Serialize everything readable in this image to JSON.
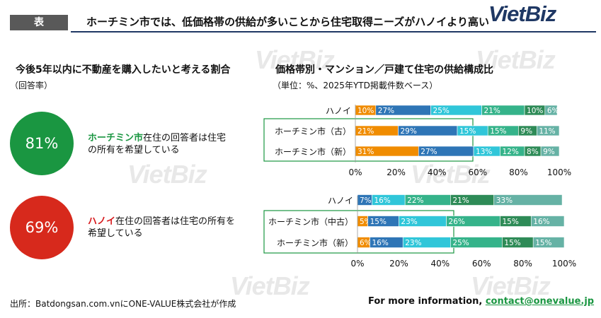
{
  "header": {
    "badge": "表",
    "title": "ホーチミン市では、低価格帯の供給が多いことから住宅取得ニーズがハノイより高い",
    "logo": "VietBiz"
  },
  "watermark": "VietBiz",
  "left": {
    "title": "今後5年以内に不動産を購入したいと考える割合",
    "unit": "（回答率）",
    "items": [
      {
        "value": "81%",
        "color": "#1a9641",
        "highlight": "ホーチミン市",
        "text": "在住の回答者は住宅の所有を希望している"
      },
      {
        "value": "69%",
        "color": "#d7291c",
        "highlight": "ハノイ",
        "text": "在住の回答者は住宅の所有を希望している"
      }
    ]
  },
  "right": {
    "title": "価格帯別・マンション／戸建て住宅の供給構成比",
    "unit": "（単位：%、2025年YTD掲載件数ベース）"
  },
  "chart_data": [
    {
      "type": "bar",
      "orientation": "horizontal-stacked",
      "categories": [
        "ハノイ",
        "ホーチミン市（古）",
        "ホーチミン市（新）"
      ],
      "colors": [
        "#f08c00",
        "#2e75b6",
        "#30c6d9",
        "#35b38a",
        "#2e8b57",
        "#66b2a5"
      ],
      "series": [
        {
          "name": "price-band-1",
          "values": [
            10,
            21,
            31
          ]
        },
        {
          "name": "price-band-2",
          "values": [
            27,
            29,
            27
          ]
        },
        {
          "name": "price-band-3",
          "values": [
            25,
            15,
            13
          ]
        },
        {
          "name": "price-band-4",
          "values": [
            21,
            15,
            12
          ]
        },
        {
          "name": "price-band-5",
          "values": [
            10,
            9,
            8
          ]
        },
        {
          "name": "price-band-6",
          "values": [
            6,
            11,
            9
          ]
        }
      ],
      "xlim": [
        0,
        100
      ],
      "xticks": [
        "0%",
        "20%",
        "40%",
        "60%",
        "80%",
        "100%"
      ]
    },
    {
      "type": "bar",
      "orientation": "horizontal-stacked",
      "categories": [
        "ハノイ",
        "ホーチミン市（中古）",
        "ホーチミン市（新）"
      ],
      "colors": [
        "#f08c00",
        "#2e75b6",
        "#30c6d9",
        "#35b38a",
        "#2e8b57",
        "#66b2a5"
      ],
      "series": [
        {
          "name": "price-band-1",
          "values": [
            0,
            5,
            6
          ]
        },
        {
          "name": "price-band-2",
          "values": [
            7,
            15,
            16
          ]
        },
        {
          "name": "price-band-3",
          "values": [
            16,
            23,
            23
          ]
        },
        {
          "name": "price-band-4",
          "values": [
            22,
            26,
            25
          ]
        },
        {
          "name": "price-band-5",
          "values": [
            21,
            15,
            15
          ]
        },
        {
          "name": "price-band-6",
          "values": [
            33,
            16,
            15
          ]
        }
      ],
      "xlim": [
        0,
        100
      ],
      "xticks": [
        "0%",
        "20%",
        "40%",
        "60%",
        "80%",
        "100%"
      ]
    }
  ],
  "footer": {
    "source": "出所：Batdongsan.com.vnにONE-VALUE株式会社が作成",
    "more_label": "For more information, ",
    "email": "contact@onevalue.jp"
  }
}
